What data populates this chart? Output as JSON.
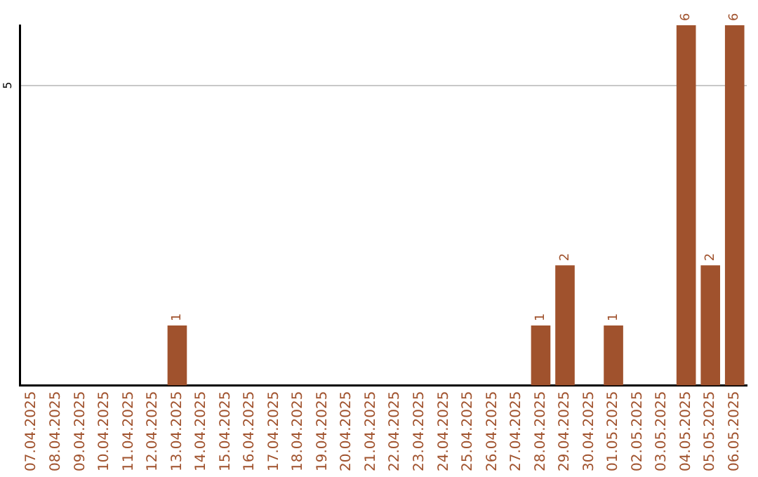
{
  "chart_data": {
    "type": "bar",
    "categories": [
      "07.04.2025",
      "08.04.2025",
      "09.04.2025",
      "10.04.2025",
      "11.04.2025",
      "12.04.2025",
      "13.04.2025",
      "14.04.2025",
      "15.04.2025",
      "16.04.2025",
      "17.04.2025",
      "18.04.2025",
      "19.04.2025",
      "20.04.2025",
      "21.04.2025",
      "22.04.2025",
      "23.04.2025",
      "24.04.2025",
      "25.04.2025",
      "26.04.2025",
      "27.04.2025",
      "28.04.2025",
      "29.04.2025",
      "30.04.2025",
      "01.05.2025",
      "02.05.2025",
      "03.05.2025",
      "04.05.2025",
      "05.05.2025",
      "06.05.2025"
    ],
    "values": [
      0,
      0,
      0,
      0,
      0,
      0,
      1,
      0,
      0,
      0,
      0,
      0,
      0,
      0,
      0,
      0,
      0,
      0,
      0,
      0,
      0,
      1,
      2,
      0,
      1,
      0,
      0,
      6,
      2,
      6
    ],
    "value_labels": [
      null,
      null,
      null,
      null,
      null,
      null,
      "1",
      null,
      null,
      null,
      null,
      null,
      null,
      null,
      null,
      null,
      null,
      null,
      null,
      null,
      null,
      "1",
      "2",
      null,
      "1",
      null,
      null,
      "6",
      "2",
      "6"
    ],
    "color": "#a0522d",
    "ylim": [
      0,
      6
    ],
    "yticks": [
      5
    ],
    "grid": "y",
    "legend": false
  }
}
